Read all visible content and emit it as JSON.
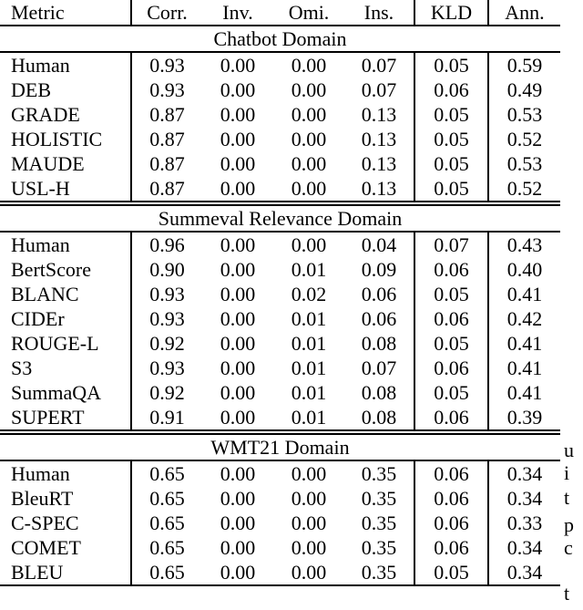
{
  "table": {
    "columns": [
      "Metric",
      "Corr.",
      "Inv.",
      "Omi.",
      "Ins.",
      "KLD",
      "Ann."
    ],
    "sections": [
      {
        "title": "Chatbot Domain",
        "rows": [
          {
            "metric": "Human",
            "values": [
              "0.93",
              "0.00",
              "0.00",
              "0.07",
              "0.05",
              "0.59"
            ]
          },
          {
            "metric": "DEB",
            "values": [
              "0.93",
              "0.00",
              "0.00",
              "0.07",
              "0.06",
              "0.49"
            ]
          },
          {
            "metric": "GRADE",
            "values": [
              "0.87",
              "0.00",
              "0.00",
              "0.13",
              "0.05",
              "0.53"
            ]
          },
          {
            "metric": "HOLISTIC",
            "values": [
              "0.87",
              "0.00",
              "0.00",
              "0.13",
              "0.05",
              "0.52"
            ]
          },
          {
            "metric": "MAUDE",
            "values": [
              "0.87",
              "0.00",
              "0.00",
              "0.13",
              "0.05",
              "0.53"
            ]
          },
          {
            "metric": "USL-H",
            "values": [
              "0.87",
              "0.00",
              "0.00",
              "0.13",
              "0.05",
              "0.52"
            ]
          }
        ]
      },
      {
        "title": "Summeval Relevance Domain",
        "rows": [
          {
            "metric": "Human",
            "values": [
              "0.96",
              "0.00",
              "0.00",
              "0.04",
              "0.07",
              "0.43"
            ]
          },
          {
            "metric": "BertScore",
            "values": [
              "0.90",
              "0.00",
              "0.01",
              "0.09",
              "0.06",
              "0.40"
            ]
          },
          {
            "metric": "BLANC",
            "values": [
              "0.93",
              "0.00",
              "0.02",
              "0.06",
              "0.05",
              "0.41"
            ]
          },
          {
            "metric": "CIDEr",
            "values": [
              "0.93",
              "0.00",
              "0.01",
              "0.06",
              "0.06",
              "0.42"
            ]
          },
          {
            "metric": "ROUGE-L",
            "values": [
              "0.92",
              "0.00",
              "0.01",
              "0.08",
              "0.05",
              "0.41"
            ]
          },
          {
            "metric": "S3",
            "values": [
              "0.93",
              "0.00",
              "0.01",
              "0.07",
              "0.06",
              "0.41"
            ]
          },
          {
            "metric": "SummaQA",
            "values": [
              "0.92",
              "0.00",
              "0.01",
              "0.08",
              "0.05",
              "0.41"
            ]
          },
          {
            "metric": "SUPERT",
            "values": [
              "0.91",
              "0.00",
              "0.01",
              "0.08",
              "0.06",
              "0.39"
            ]
          }
        ]
      },
      {
        "title": "WMT21 Domain",
        "rows": [
          {
            "metric": "Human",
            "values": [
              "0.65",
              "0.00",
              "0.00",
              "0.35",
              "0.06",
              "0.34"
            ]
          },
          {
            "metric": "BleuRT",
            "values": [
              "0.65",
              "0.00",
              "0.00",
              "0.35",
              "0.06",
              "0.34"
            ]
          },
          {
            "metric": "C-SPEC",
            "values": [
              "0.65",
              "0.00",
              "0.00",
              "0.35",
              "0.06",
              "0.33"
            ]
          },
          {
            "metric": "COMET",
            "values": [
              "0.65",
              "0.00",
              "0.00",
              "0.35",
              "0.06",
              "0.34"
            ]
          },
          {
            "metric": "BLEU",
            "values": [
              "0.65",
              "0.00",
              "0.00",
              "0.35",
              "0.05",
              "0.34"
            ]
          }
        ]
      }
    ]
  },
  "edge_text": {
    "fragments": [
      "u",
      "i",
      "t",
      "p",
      "c",
      "t"
    ]
  }
}
